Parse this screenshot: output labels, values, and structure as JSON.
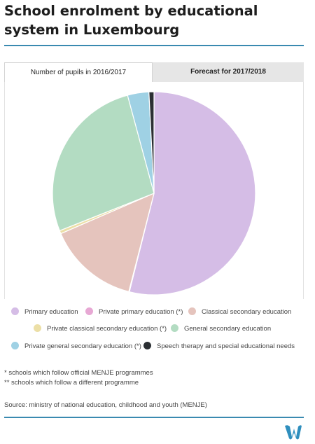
{
  "header": {
    "title": "School enrolment by educational system in Luxembourg"
  },
  "tabs": [
    {
      "label": "Number of pupils in 2016/2017",
      "active": true
    },
    {
      "label": "Forecast for 2017/2018",
      "active": false
    }
  ],
  "chart_data": {
    "type": "pie",
    "title": "School enrolment by educational system in Luxembourg",
    "unit": "share of pupils (%)",
    "start_angle_deg": 0,
    "direction": "clockwise",
    "slices": [
      {
        "name": "Primary education",
        "value": 53.9,
        "color": "#d5bde6"
      },
      {
        "name": "Private primary education (*)",
        "value": 0.1,
        "color": "#e7a8d4"
      },
      {
        "name": "Classical secondary education",
        "value": 14.5,
        "color": "#e5c4bd"
      },
      {
        "name": "Private classical secondary education (*)",
        "value": 0.5,
        "color": "#ecdfa6"
      },
      {
        "name": "General secondary education",
        "value": 26.8,
        "color": "#b3dcc2"
      },
      {
        "name": "Private general secondary education (*)",
        "value": 3.4,
        "color": "#9fd1e4"
      },
      {
        "name": "Speech therapy and special educational needs",
        "value": 0.8,
        "color": "#2b2f33"
      }
    ],
    "legend_position": "bottom"
  },
  "notes": [
    "* schools which follow official MENJE programmes",
    "** schools which follow a different programme"
  ],
  "source": "Source: ministry of national education, childhood and youth (MENJE)",
  "colors": {
    "accent": "#3a8ab0"
  }
}
